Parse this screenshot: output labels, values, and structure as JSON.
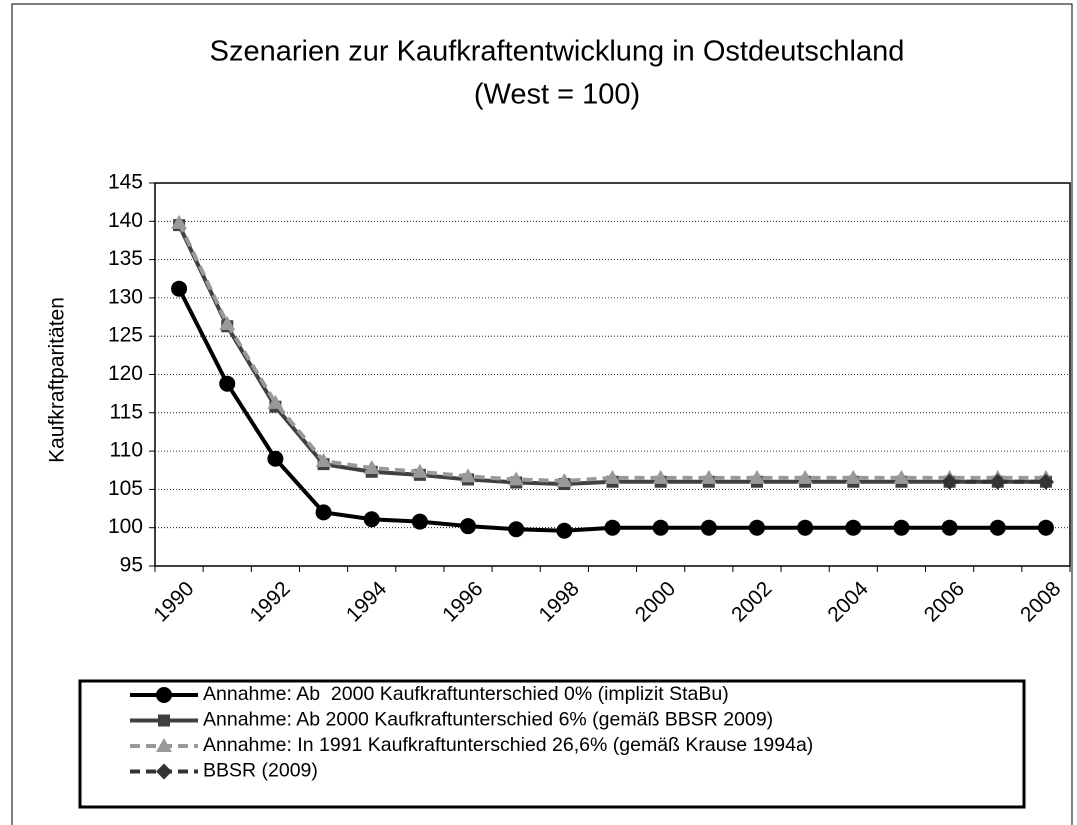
{
  "chart_data": {
    "type": "line",
    "title": "Szenarien zur Kaufkraftentwicklung in Ostdeutschland",
    "subtitle": "(West = 100)",
    "y_label": "Kaufkraftparitäten",
    "categories": [
      "1990",
      null,
      "1992",
      null,
      "1994",
      null,
      "1996",
      null,
      "1998",
      null,
      "2000",
      null,
      "2002",
      null,
      "2004",
      null,
      "2006",
      null,
      "2008"
    ],
    "ylim": [
      95,
      145
    ],
    "yticks": [
      95,
      100,
      105,
      110,
      115,
      120,
      125,
      130,
      135,
      140,
      145
    ],
    "grid": true,
    "legend": "bottom",
    "series": [
      {
        "name": "Annahme: Ab  2000 Kaufkraftunterschied 0% (implizit StaBu)",
        "color": "#000000",
        "marker": "circle",
        "dash": false,
        "values": [
          131.2,
          118.8,
          109,
          102,
          101.1,
          100.8,
          100.2,
          99.8,
          99.6,
          100,
          100,
          100,
          100,
          100,
          100,
          100,
          100,
          100,
          100
        ]
      },
      {
        "name": "Annahme: Ab 2000 Kaufkraftunterschied 6% (gemäß BBSR 2009)",
        "color": "#404040",
        "marker": "square",
        "dash": false,
        "values": [
          139.5,
          126.3,
          115.8,
          108.3,
          107.3,
          106.9,
          106.3,
          105.9,
          105.7,
          106,
          106,
          106,
          106,
          106,
          106,
          106,
          106,
          106,
          106
        ]
      },
      {
        "name": "Annahme: In 1991 Kaufkraftunterschied 26,6% (gemäß Krause 1994a)",
        "color": "#999999",
        "marker": "triangle",
        "dash": true,
        "values": [
          139.8,
          126.6,
          116.3,
          108.7,
          107.8,
          107.3,
          106.7,
          106.3,
          106.1,
          106.5,
          106.5,
          106.5,
          106.5,
          106.5,
          106.5,
          106.5,
          106.5,
          106.5,
          106.5
        ]
      },
      {
        "name": "BBSR (2009)",
        "color": "#333333",
        "marker": "diamond",
        "dash": true,
        "values": [
          null,
          null,
          null,
          null,
          null,
          null,
          null,
          null,
          null,
          null,
          null,
          null,
          null,
          null,
          null,
          null,
          106,
          106,
          106
        ]
      }
    ]
  }
}
